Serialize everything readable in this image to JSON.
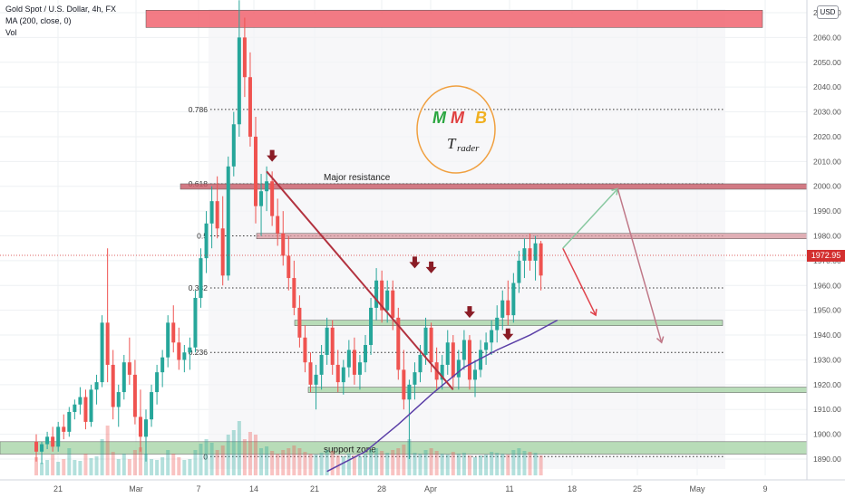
{
  "header": {
    "symbol": "Gold Spot / U.S. Dollar, 4h, FX",
    "indicator": "MA (200, close, 0)",
    "volume": "Vol",
    "currency": "USD",
    "last_price": "1972.95"
  },
  "chart_data": {
    "type": "candlestick",
    "symbol": "Gold Spot / U.S. Dollar",
    "timeframe": "4h",
    "y_axis": {
      "ticks": [
        "1890.00",
        "1900.00",
        "1910.00",
        "1920.00",
        "1930.00",
        "1940.00",
        "1950.00",
        "1960.00",
        "1970.00",
        "1980.00",
        "1990.00",
        "2000.00",
        "2010.00",
        "2020.00",
        "2030.00",
        "2040.00",
        "2050.00",
        "2060.00",
        "2070.00"
      ],
      "range": [
        1885,
        2075
      ],
      "current_price": 1972.95
    },
    "x_axis": {
      "ticks": [
        "21",
        "Mar",
        "7",
        "14",
        "21",
        "28",
        "Apr",
        "11",
        "18",
        "25",
        "May",
        "9"
      ]
    },
    "fib_levels": [
      {
        "label": "0.786",
        "price": 2031
      },
      {
        "label": "0.618",
        "price": 2001
      },
      {
        "label": "0.5",
        "price": 1980
      },
      {
        "label": "0.382",
        "price": 1959
      },
      {
        "label": "0.236",
        "price": 1933
      },
      {
        "label": "0",
        "price": 1891
      }
    ],
    "zones": [
      {
        "label": "",
        "from": 2064,
        "to": 2071,
        "color": "#f05a66"
      },
      {
        "label": "Major resistance",
        "from": 1999,
        "to": 2001,
        "color": "#c85a66"
      },
      {
        "label": "",
        "from": 1979,
        "to": 1981,
        "color": "#d99ca4"
      },
      {
        "label": "",
        "from": 1944,
        "to": 1946,
        "color": "#a8d5a8"
      },
      {
        "label": "",
        "from": 1918,
        "to": 1919,
        "color": "#a8d5a8"
      },
      {
        "label": "support zone",
        "from": 1892,
        "to": 1897,
        "color": "#a8d5a8"
      }
    ],
    "candles": [
      {
        "t": 0.0,
        "o": 1897,
        "h": 1900,
        "l": 1889,
        "c": 1893
      },
      {
        "t": 1.0,
        "o": 1893,
        "h": 1897,
        "l": 1888,
        "c": 1896
      },
      {
        "t": 2.0,
        "o": 1896,
        "h": 1901,
        "l": 1894,
        "c": 1899
      },
      {
        "t": 3.0,
        "o": 1899,
        "h": 1903,
        "l": 1893,
        "c": 1895
      },
      {
        "t": 4.0,
        "o": 1895,
        "h": 1905,
        "l": 1893,
        "c": 1903
      },
      {
        "t": 5.0,
        "o": 1903,
        "h": 1908,
        "l": 1898,
        "c": 1901
      },
      {
        "t": 6.0,
        "o": 1901,
        "h": 1911,
        "l": 1899,
        "c": 1909
      },
      {
        "t": 7.0,
        "o": 1909,
        "h": 1914,
        "l": 1906,
        "c": 1912
      },
      {
        "t": 8.0,
        "o": 1912,
        "h": 1919,
        "l": 1908,
        "c": 1915
      },
      {
        "t": 9.0,
        "o": 1915,
        "h": 1918,
        "l": 1902,
        "c": 1905
      },
      {
        "t": 10.0,
        "o": 1905,
        "h": 1920,
        "l": 1903,
        "c": 1918
      },
      {
        "t": 11.0,
        "o": 1918,
        "h": 1924,
        "l": 1912,
        "c": 1921
      },
      {
        "t": 12.0,
        "o": 1921,
        "h": 1948,
        "l": 1919,
        "c": 1945
      },
      {
        "t": 13.0,
        "o": 1945,
        "h": 1975,
        "l": 1921,
        "c": 1928
      },
      {
        "t": 14.0,
        "o": 1928,
        "h": 1934,
        "l": 1906,
        "c": 1911
      },
      {
        "t": 15.0,
        "o": 1911,
        "h": 1920,
        "l": 1903,
        "c": 1917
      },
      {
        "t": 16.0,
        "o": 1917,
        "h": 1932,
        "l": 1914,
        "c": 1929
      },
      {
        "t": 17.0,
        "o": 1929,
        "h": 1939,
        "l": 1920,
        "c": 1924
      },
      {
        "t": 18.0,
        "o": 1924,
        "h": 1930,
        "l": 1904,
        "c": 1907
      },
      {
        "t": 19.0,
        "o": 1907,
        "h": 1918,
        "l": 1893,
        "c": 1899
      },
      {
        "t": 20.0,
        "o": 1899,
        "h": 1910,
        "l": 1889,
        "c": 1906
      },
      {
        "t": 21.0,
        "o": 1906,
        "h": 1920,
        "l": 1903,
        "c": 1917
      },
      {
        "t": 22.0,
        "o": 1917,
        "h": 1928,
        "l": 1912,
        "c": 1925
      },
      {
        "t": 23.0,
        "o": 1925,
        "h": 1934,
        "l": 1919,
        "c": 1931
      },
      {
        "t": 24.0,
        "o": 1931,
        "h": 1948,
        "l": 1927,
        "c": 1945
      },
      {
        "t": 25.0,
        "o": 1945,
        "h": 1952,
        "l": 1933,
        "c": 1937
      },
      {
        "t": 26.0,
        "o": 1937,
        "h": 1943,
        "l": 1926,
        "c": 1930
      },
      {
        "t": 27.0,
        "o": 1930,
        "h": 1936,
        "l": 1925,
        "c": 1933
      },
      {
        "t": 28.0,
        "o": 1933,
        "h": 1939,
        "l": 1926,
        "c": 1935
      },
      {
        "t": 29.0,
        "o": 1935,
        "h": 1958,
        "l": 1933,
        "c": 1955
      },
      {
        "t": 30.0,
        "o": 1955,
        "h": 1975,
        "l": 1951,
        "c": 1971
      },
      {
        "t": 31.0,
        "o": 1971,
        "h": 1990,
        "l": 1965,
        "c": 1985
      },
      {
        "t": 32.0,
        "o": 1985,
        "h": 2000,
        "l": 1975,
        "c": 1994
      },
      {
        "t": 33.0,
        "o": 1994,
        "h": 2004,
        "l": 1979,
        "c": 1983
      },
      {
        "t": 34.0,
        "o": 1983,
        "h": 1996,
        "l": 1960,
        "c": 1964
      },
      {
        "t": 35.0,
        "o": 1964,
        "h": 2012,
        "l": 1962,
        "c": 2008
      },
      {
        "t": 36.0,
        "o": 2008,
        "h": 2030,
        "l": 2004,
        "c": 2025
      },
      {
        "t": 37.0,
        "o": 2025,
        "h": 2075,
        "l": 2020,
        "c": 2060
      },
      {
        "t": 38.0,
        "o": 2060,
        "h": 2068,
        "l": 2036,
        "c": 2044
      },
      {
        "t": 39.0,
        "o": 2044,
        "h": 2054,
        "l": 2016,
        "c": 2020
      },
      {
        "t": 40.0,
        "o": 2020,
        "h": 2028,
        "l": 1985,
        "c": 1992
      },
      {
        "t": 41.0,
        "o": 1992,
        "h": 2005,
        "l": 1980,
        "c": 1998
      },
      {
        "t": 42.0,
        "o": 1998,
        "h": 2008,
        "l": 1990,
        "c": 2002
      },
      {
        "t": 43.0,
        "o": 2002,
        "h": 2006,
        "l": 1984,
        "c": 1988
      },
      {
        "t": 44.0,
        "o": 1988,
        "h": 1995,
        "l": 1976,
        "c": 1981
      },
      {
        "t": 45.0,
        "o": 1981,
        "h": 1990,
        "l": 1968,
        "c": 1972
      },
      {
        "t": 46.0,
        "o": 1972,
        "h": 1980,
        "l": 1958,
        "c": 1963
      },
      {
        "t": 47.0,
        "o": 1963,
        "h": 1970,
        "l": 1948,
        "c": 1951
      },
      {
        "t": 48.0,
        "o": 1951,
        "h": 1956,
        "l": 1935,
        "c": 1939
      },
      {
        "t": 49.0,
        "o": 1939,
        "h": 1944,
        "l": 1925,
        "c": 1929
      },
      {
        "t": 50.0,
        "o": 1929,
        "h": 1933,
        "l": 1917,
        "c": 1920
      },
      {
        "t": 51.0,
        "o": 1920,
        "h": 1928,
        "l": 1910,
        "c": 1924
      },
      {
        "t": 52.0,
        "o": 1924,
        "h": 1936,
        "l": 1918,
        "c": 1932
      },
      {
        "t": 53.0,
        "o": 1932,
        "h": 1947,
        "l": 1928,
        "c": 1943
      },
      {
        "t": 54.0,
        "o": 1943,
        "h": 1946,
        "l": 1924,
        "c": 1928
      },
      {
        "t": 55.0,
        "o": 1928,
        "h": 1934,
        "l": 1917,
        "c": 1921
      },
      {
        "t": 56.0,
        "o": 1921,
        "h": 1930,
        "l": 1916,
        "c": 1927
      },
      {
        "t": 57.0,
        "o": 1927,
        "h": 1938,
        "l": 1923,
        "c": 1934
      },
      {
        "t": 58.0,
        "o": 1934,
        "h": 1939,
        "l": 1920,
        "c": 1924
      },
      {
        "t": 59.0,
        "o": 1924,
        "h": 1932,
        "l": 1918,
        "c": 1929
      },
      {
        "t": 60.0,
        "o": 1929,
        "h": 1940,
        "l": 1925,
        "c": 1936
      },
      {
        "t": 61.0,
        "o": 1936,
        "h": 1955,
        "l": 1932,
        "c": 1951
      },
      {
        "t": 62.0,
        "o": 1951,
        "h": 1967,
        "l": 1946,
        "c": 1962
      },
      {
        "t": 63.0,
        "o": 1962,
        "h": 1966,
        "l": 1945,
        "c": 1950
      },
      {
        "t": 64.0,
        "o": 1950,
        "h": 1962,
        "l": 1945,
        "c": 1958
      },
      {
        "t": 65.0,
        "o": 1958,
        "h": 1962,
        "l": 1942,
        "c": 1947
      },
      {
        "t": 66.0,
        "o": 1947,
        "h": 1951,
        "l": 1922,
        "c": 1926
      },
      {
        "t": 67.0,
        "o": 1926,
        "h": 1934,
        "l": 1910,
        "c": 1914
      },
      {
        "t": 68.0,
        "o": 1914,
        "h": 1922,
        "l": 1890,
        "c": 1920
      },
      {
        "t": 69.0,
        "o": 1920,
        "h": 1929,
        "l": 1914,
        "c": 1925
      },
      {
        "t": 70.0,
        "o": 1925,
        "h": 1936,
        "l": 1921,
        "c": 1932
      },
      {
        "t": 71.0,
        "o": 1932,
        "h": 1947,
        "l": 1928,
        "c": 1943
      },
      {
        "t": 72.0,
        "o": 1943,
        "h": 1945,
        "l": 1925,
        "c": 1929
      },
      {
        "t": 73.0,
        "o": 1929,
        "h": 1935,
        "l": 1918,
        "c": 1922
      },
      {
        "t": 74.0,
        "o": 1922,
        "h": 1932,
        "l": 1918,
        "c": 1928
      },
      {
        "t": 75.0,
        "o": 1928,
        "h": 1942,
        "l": 1924,
        "c": 1937
      },
      {
        "t": 76.0,
        "o": 1937,
        "h": 1940,
        "l": 1919,
        "c": 1923
      },
      {
        "t": 77.0,
        "o": 1923,
        "h": 1934,
        "l": 1918,
        "c": 1930
      },
      {
        "t": 78.0,
        "o": 1930,
        "h": 1942,
        "l": 1926,
        "c": 1938
      },
      {
        "t": 79.0,
        "o": 1938,
        "h": 1940,
        "l": 1918,
        "c": 1922
      },
      {
        "t": 80.0,
        "o": 1922,
        "h": 1930,
        "l": 1915,
        "c": 1926
      },
      {
        "t": 81.0,
        "o": 1926,
        "h": 1938,
        "l": 1923,
        "c": 1934
      },
      {
        "t": 82.0,
        "o": 1934,
        "h": 1941,
        "l": 1928,
        "c": 1937
      },
      {
        "t": 83.0,
        "o": 1937,
        "h": 1946,
        "l": 1932,
        "c": 1942
      },
      {
        "t": 84.0,
        "o": 1942,
        "h": 1952,
        "l": 1937,
        "c": 1947
      },
      {
        "t": 85.0,
        "o": 1947,
        "h": 1958,
        "l": 1942,
        "c": 1954
      },
      {
        "t": 86.0,
        "o": 1954,
        "h": 1962,
        "l": 1944,
        "c": 1948
      },
      {
        "t": 87.0,
        "o": 1948,
        "h": 1965,
        "l": 1945,
        "c": 1961
      },
      {
        "t": 88.0,
        "o": 1961,
        "h": 1974,
        "l": 1957,
        "c": 1970
      },
      {
        "t": 89.0,
        "o": 1970,
        "h": 1979,
        "l": 1963,
        "c": 1975
      },
      {
        "t": 90.0,
        "o": 1975,
        "h": 1981,
        "l": 1966,
        "c": 1970
      },
      {
        "t": 91.0,
        "o": 1970,
        "h": 1980,
        "l": 1962,
        "c": 1977
      },
      {
        "t": 92.0,
        "o": 1977,
        "h": 1978,
        "l": 1958,
        "c": 1964
      }
    ],
    "volume_bars": [
      20,
      14,
      17,
      23,
      15,
      18,
      30,
      17,
      16,
      24,
      19,
      21,
      40,
      55,
      26,
      18,
      24,
      18,
      28,
      31,
      24,
      18,
      17,
      20,
      28,
      24,
      20,
      17,
      18,
      28,
      35,
      40,
      36,
      28,
      33,
      45,
      50,
      60,
      40,
      48,
      45,
      30,
      32,
      27,
      24,
      28,
      30,
      33,
      30,
      26,
      24,
      23,
      25,
      28,
      27,
      22,
      21,
      24,
      22,
      21,
      24,
      28,
      30,
      27,
      25,
      28,
      30,
      34,
      40,
      25,
      24,
      28,
      30,
      27,
      24,
      23,
      26,
      24,
      25,
      22,
      20,
      22,
      23,
      26,
      25,
      24,
      23,
      28,
      30,
      27,
      26,
      25,
      22
    ],
    "ma200": [
      {
        "t": 53,
        "v": 1885
      },
      {
        "t": 60,
        "v": 1893
      },
      {
        "t": 66,
        "v": 1904
      },
      {
        "t": 72,
        "v": 1916
      },
      {
        "t": 78,
        "v": 1927
      },
      {
        "t": 84,
        "v": 1934
      },
      {
        "t": 90,
        "v": 1940
      },
      {
        "t": 95,
        "v": 1946
      }
    ],
    "trendline": {
      "from": {
        "t": 42,
        "p": 2006
      },
      "to": {
        "t": 76,
        "p": 1918
      }
    },
    "signal_arrows": [
      {
        "t": 43,
        "p": 2011
      },
      {
        "t": 69,
        "p": 1968
      },
      {
        "t": 72,
        "p": 1966
      },
      {
        "t": 79,
        "p": 1948
      },
      {
        "t": 86,
        "p": 1939
      }
    ],
    "projections": [
      {
        "from": {
          "t": 96,
          "p": 1975
        },
        "to": {
          "t": 102,
          "p": 1948
        },
        "color": "#e0424b"
      },
      {
        "from": {
          "t": 96,
          "p": 1975
        },
        "to": {
          "t": 106,
          "p": 1999
        },
        "color": "#88c8a0"
      },
      {
        "from": {
          "t": 106,
          "p": 1999
        },
        "to": {
          "t": 114,
          "p": 1937
        },
        "color": "#c07888"
      }
    ],
    "logo": {
      "letters": [
        "M",
        "M",
        "B"
      ],
      "colors": [
        "#2aa640",
        "#e04040",
        "#f0b020"
      ],
      "subtitle": "Trader",
      "subtitle_subscript": "rader"
    },
    "colors": {
      "up": "#26a69a",
      "down": "#ef5350",
      "ma": "#5b3fa7",
      "trend": "#b2323f"
    }
  }
}
